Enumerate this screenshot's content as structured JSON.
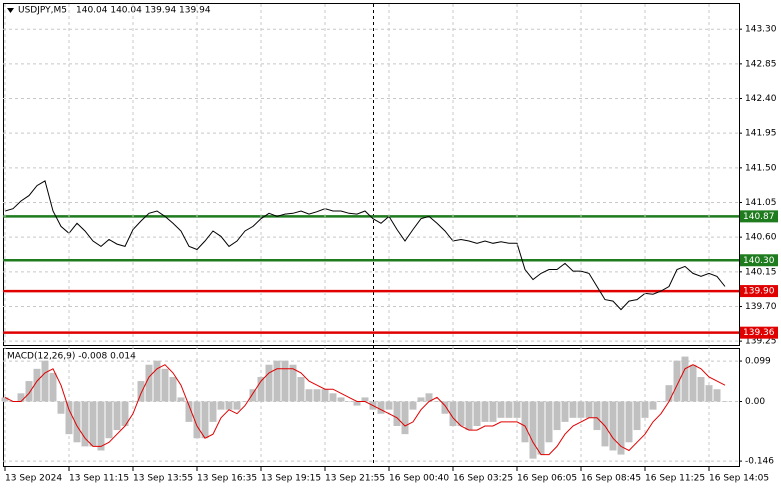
{
  "chart_data": [
    {
      "type": "line",
      "symbol": "USDJPY,M5",
      "ohlc": "140.04 140.04 139.94 139.94",
      "color": "#000000",
      "grid": true,
      "xlim": [
        -1,
        367
      ],
      "ylim": [
        139.2,
        143.64
      ],
      "yticks": [
        {
          "value": 143.3,
          "label": "143.30"
        },
        {
          "value": 142.85,
          "label": "142.85"
        },
        {
          "value": 142.4,
          "label": "142.40"
        },
        {
          "value": 141.95,
          "label": "141.95"
        },
        {
          "value": 141.5,
          "label": "141.50"
        },
        {
          "value": 141.05,
          "label": "141.05"
        },
        {
          "value": 140.6,
          "label": "140.60"
        },
        {
          "value": 140.15,
          "label": "140.15"
        },
        {
          "value": 139.7,
          "label": "139.70"
        },
        {
          "value": 139.25,
          "label": "139.25"
        }
      ],
      "levels": [
        {
          "value": 140.87,
          "label": "140.87",
          "color": "#1e7b1e"
        },
        {
          "value": 140.3,
          "label": "140.30",
          "color": "#1e7b1e"
        },
        {
          "value": 139.9,
          "label": "139.90",
          "color": "#e00000"
        },
        {
          "value": 139.36,
          "label": "139.36",
          "color": "#e00000"
        }
      ],
      "x": [
        0,
        4,
        8,
        12,
        16,
        20,
        24,
        28,
        32,
        36,
        40,
        44,
        48,
        52,
        56,
        60,
        64,
        68,
        72,
        76,
        80,
        84,
        88,
        92,
        96,
        100,
        104,
        108,
        112,
        116,
        120,
        124,
        128,
        132,
        136,
        140,
        144,
        148,
        152,
        156,
        160,
        164,
        168,
        172,
        176,
        180,
        184,
        188,
        192,
        196,
        200,
        204,
        208,
        212,
        216,
        220,
        224,
        228,
        232,
        236,
        240,
        244,
        248,
        252,
        256,
        260,
        264,
        268,
        272,
        276,
        280,
        284,
        288,
        292,
        296,
        300,
        304,
        308,
        312,
        316,
        320,
        324,
        328,
        332,
        336,
        340,
        344,
        348,
        352,
        356,
        360
      ],
      "values": [
        140.94,
        140.97,
        141.07,
        141.14,
        141.27,
        141.33,
        140.94,
        140.74,
        140.65,
        140.78,
        140.68,
        140.55,
        140.48,
        140.57,
        140.51,
        140.48,
        140.7,
        140.81,
        140.91,
        140.94,
        140.87,
        140.78,
        140.68,
        140.48,
        140.44,
        140.55,
        140.68,
        140.61,
        140.48,
        140.55,
        140.68,
        140.74,
        140.84,
        140.91,
        140.87,
        140.9,
        140.91,
        140.94,
        140.9,
        140.93,
        140.97,
        140.94,
        140.94,
        140.91,
        140.9,
        140.94,
        140.84,
        140.78,
        140.87,
        140.7,
        140.55,
        140.7,
        140.84,
        140.87,
        140.78,
        140.68,
        140.55,
        140.57,
        140.55,
        140.52,
        140.55,
        140.52,
        140.54,
        140.52,
        140.52,
        140.18,
        140.05,
        140.13,
        140.18,
        140.18,
        140.26,
        140.16,
        140.16,
        140.13,
        139.96,
        139.79,
        139.77,
        139.66,
        139.77,
        139.79,
        139.87,
        139.86,
        139.9,
        139.96,
        140.18,
        140.22,
        140.13,
        140.09,
        140.13,
        140.09,
        139.96
      ]
    },
    {
      "type": "macd",
      "title": "MACD(12,26,9) -0.008 0.014",
      "grid": true,
      "xlim": [
        -1,
        367
      ],
      "ylim": [
        -0.158,
        0.131
      ],
      "yticks": [
        0.099,
        {
          "value": 0,
          "label": "0.00"
        },
        -0.146
      ],
      "xticks": [
        {
          "value": 0,
          "label": "13 Sep 2024"
        },
        {
          "value": 32,
          "label": "13 Sep 11:15"
        },
        {
          "value": 64,
          "label": "13 Sep 13:55"
        },
        {
          "value": 96,
          "label": "13 Sep 16:35"
        },
        {
          "value": 128,
          "label": "13 Sep 19:15"
        },
        {
          "value": 160,
          "label": "13 Sep 21:55"
        },
        {
          "value": 192,
          "label": "16 Sep 00:40"
        },
        {
          "value": 224,
          "label": "16 Sep 03:25"
        },
        {
          "value": 256,
          "label": "16 Sep 06:05"
        },
        {
          "value": 288,
          "label": "16 Sep 08:45"
        },
        {
          "value": 320,
          "label": "16 Sep 11:25"
        },
        {
          "value": 352,
          "label": "16 Sep 14:05"
        }
      ],
      "x": [
        0,
        4,
        8,
        12,
        16,
        20,
        24,
        28,
        32,
        36,
        40,
        44,
        48,
        52,
        56,
        60,
        64,
        68,
        72,
        76,
        80,
        84,
        88,
        92,
        96,
        100,
        104,
        108,
        112,
        116,
        120,
        124,
        128,
        132,
        136,
        140,
        144,
        148,
        152,
        156,
        160,
        164,
        168,
        172,
        176,
        180,
        184,
        188,
        192,
        196,
        200,
        204,
        208,
        212,
        216,
        220,
        224,
        228,
        232,
        236,
        240,
        244,
        248,
        252,
        256,
        260,
        264,
        268,
        272,
        276,
        280,
        284,
        288,
        292,
        296,
        300,
        304,
        308,
        312,
        316,
        320,
        324,
        328,
        332,
        336,
        340,
        344,
        348,
        352,
        356,
        360
      ],
      "histogram": {
        "color": "#c0c0c0",
        "values": [
          0.01,
          0,
          0.02,
          0.05,
          0.08,
          0.1,
          0.07,
          -0.03,
          -0.08,
          -0.1,
          -0.11,
          -0.11,
          -0.12,
          -0.09,
          -0.07,
          -0.06,
          0,
          0.05,
          0.09,
          0.1,
          0.08,
          0.06,
          0.01,
          -0.05,
          -0.09,
          -0.09,
          -0.05,
          -0.02,
          -0.02,
          -0.02,
          0,
          0.03,
          0.06,
          0.09,
          0.1,
          0.1,
          0.09,
          0.06,
          0.03,
          0.03,
          0.03,
          0.02,
          0.01,
          0,
          -0.01,
          0.01,
          -0.02,
          -0.03,
          -0.02,
          -0.06,
          -0.08,
          -0.02,
          0.01,
          0.02,
          0,
          -0.03,
          -0.06,
          -0.06,
          -0.07,
          -0.06,
          -0.05,
          -0.05,
          -0.04,
          -0.04,
          -0.04,
          -0.1,
          -0.14,
          -0.13,
          -0.1,
          -0.07,
          -0.05,
          -0.04,
          -0.04,
          -0.04,
          -0.07,
          -0.11,
          -0.12,
          -0.13,
          -0.1,
          -0.07,
          -0.04,
          -0.02,
          0,
          0.04,
          0.1,
          0.11,
          0.09,
          0.06,
          0.04,
          0.03,
          0
        ]
      },
      "signal": {
        "color": "#e00000",
        "values": [
          0.01,
          0,
          0,
          0.02,
          0.05,
          0.07,
          0.08,
          0.04,
          -0.02,
          -0.06,
          -0.09,
          -0.11,
          -0.11,
          -0.1,
          -0.08,
          -0.06,
          -0.03,
          0.02,
          0.06,
          0.08,
          0.09,
          0.07,
          0.04,
          -0.01,
          -0.06,
          -0.09,
          -0.08,
          -0.04,
          -0.02,
          -0.03,
          -0.01,
          0.02,
          0.05,
          0.07,
          0.08,
          0.08,
          0.08,
          0.07,
          0.05,
          0.04,
          0.03,
          0.03,
          0.02,
          0.01,
          0,
          0,
          -0.01,
          -0.02,
          -0.03,
          -0.04,
          -0.06,
          -0.05,
          -0.02,
          0,
          0.01,
          -0.01,
          -0.04,
          -0.06,
          -0.07,
          -0.07,
          -0.06,
          -0.06,
          -0.05,
          -0.05,
          -0.05,
          -0.06,
          -0.1,
          -0.13,
          -0.13,
          -0.11,
          -0.08,
          -0.06,
          -0.05,
          -0.04,
          -0.04,
          -0.06,
          -0.09,
          -0.11,
          -0.12,
          -0.1,
          -0.08,
          -0.05,
          -0.03,
          0,
          0.04,
          0.08,
          0.09,
          0.08,
          0.06,
          0.05,
          0.04
        ]
      }
    }
  ]
}
